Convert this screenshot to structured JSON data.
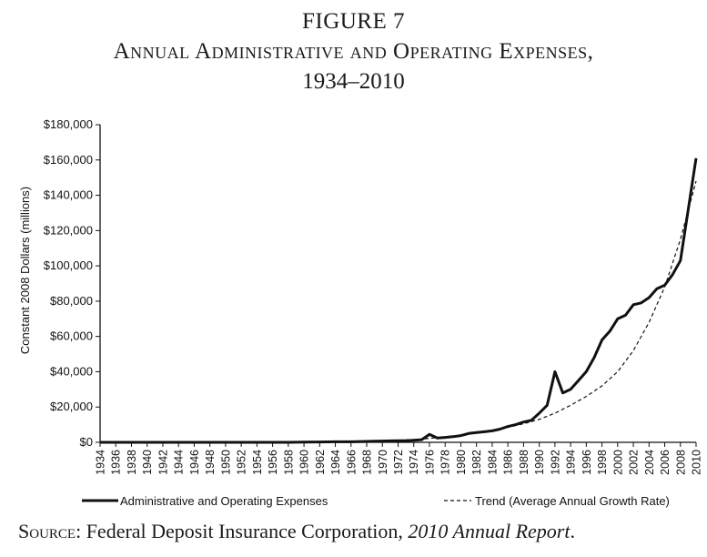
{
  "figure": {
    "label": "FIGURE 7",
    "title_line1": "Annual Administrative and Operating Expenses,",
    "title_line2": "1934–2010"
  },
  "source": {
    "prefix": "Source",
    "text": ": Federal Deposit Insurance Corporation, ",
    "report": "2010 Annual Report",
    "suffix": "."
  },
  "chart_data": {
    "type": "line",
    "ylabel": "Constant 2008 Dollars (millions)",
    "xlabel": "",
    "ylim": [
      0,
      180000
    ],
    "xlim": [
      1934,
      2010
    ],
    "yticks": [
      0,
      20000,
      40000,
      60000,
      80000,
      100000,
      120000,
      140000,
      160000,
      180000
    ],
    "ytick_labels": [
      "$0",
      "$20,000",
      "$40,000",
      "$60,000",
      "$80,000",
      "$100,000",
      "$120,000",
      "$140,000",
      "$160,000",
      "$180,000"
    ],
    "xticks": [
      1934,
      1936,
      1938,
      1940,
      1942,
      1944,
      1946,
      1948,
      1950,
      1952,
      1954,
      1956,
      1958,
      1960,
      1962,
      1964,
      1966,
      1968,
      1970,
      1972,
      1974,
      1976,
      1978,
      1980,
      1982,
      1984,
      1986,
      1988,
      1990,
      1992,
      1994,
      1996,
      1998,
      2000,
      2002,
      2004,
      2006,
      2008,
      2010
    ],
    "grid": false,
    "legend_position": "bottom",
    "series": [
      {
        "name": "Administrative and Operating Expenses",
        "style": "solid",
        "color": "#111111",
        "x": [
          1934,
          1936,
          1938,
          1940,
          1942,
          1944,
          1946,
          1948,
          1950,
          1952,
          1954,
          1956,
          1958,
          1960,
          1962,
          1964,
          1966,
          1968,
          1969,
          1970,
          1971,
          1972,
          1973,
          1974,
          1975,
          1976,
          1977,
          1978,
          1979,
          1980,
          1981,
          1982,
          1983,
          1984,
          1985,
          1986,
          1987,
          1988,
          1989,
          1990,
          1991,
          1992,
          1993,
          1994,
          1995,
          1996,
          1997,
          1998,
          1999,
          2000,
          2001,
          2002,
          2003,
          2004,
          2005,
          2006,
          2007,
          2008,
          2009,
          2010
        ],
        "y": [
          0,
          0,
          0,
          0,
          0,
          0,
          0,
          0,
          0,
          0,
          0,
          0,
          0,
          100,
          200,
          300,
          300,
          500,
          600,
          700,
          800,
          900,
          1000,
          1200,
          1500,
          4500,
          2500,
          2800,
          3200,
          3800,
          5000,
          5500,
          6000,
          6500,
          7500,
          9000,
          10000,
          11500,
          12500,
          16500,
          21000,
          40000,
          28000,
          30000,
          35000,
          40000,
          48000,
          58000,
          63000,
          70000,
          72000,
          78000,
          79000,
          82000,
          87000,
          89000,
          95000,
          103000,
          132000,
          161000
        ]
      },
      {
        "name": "Trend (Average Annual Growth Rate)",
        "style": "dashed",
        "color": "#111111",
        "x": [
          1934,
          1940,
          1950,
          1960,
          1965,
          1970,
          1975,
          1980,
          1985,
          1988,
          1990,
          1992,
          1994,
          1996,
          1998,
          2000,
          2002,
          2004,
          2006,
          2008,
          2010
        ],
        "y": [
          0,
          0,
          0,
          100,
          300,
          700,
          1800,
          4000,
          7500,
          10500,
          13000,
          16500,
          21000,
          26000,
          32000,
          40000,
          52000,
          68000,
          88000,
          115000,
          148000
        ]
      }
    ]
  }
}
